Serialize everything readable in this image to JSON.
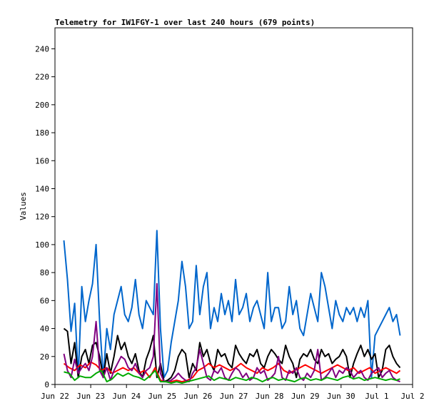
{
  "chart_data": {
    "type": "line",
    "title": "Telemetry for IW1FGY-1 over last 240 hours (679 points)",
    "xlabel": "",
    "ylabel": "Values",
    "x_unit": "days",
    "xlim": [
      0,
      10
    ],
    "ylim": [
      0,
      255
    ],
    "y_ticks": [
      0,
      20,
      40,
      60,
      80,
      100,
      120,
      140,
      160,
      180,
      200,
      220,
      240
    ],
    "x_ticks": [
      {
        "value": 0,
        "label": "Jun 22"
      },
      {
        "value": 1,
        "label": "Jun 23"
      },
      {
        "value": 2,
        "label": "Jun 24"
      },
      {
        "value": 3,
        "label": "Jun 25"
      },
      {
        "value": 4,
        "label": "Jun 26"
      },
      {
        "value": 5,
        "label": "Jun 27"
      },
      {
        "value": 6,
        "label": "Jun 28"
      },
      {
        "value": 7,
        "label": "Jun 29"
      },
      {
        "value": 8,
        "label": "Jun 30"
      },
      {
        "value": 9,
        "label": "Jul 1"
      },
      {
        "value": 10,
        "label": "Jul 2"
      }
    ],
    "grid": false,
    "legend": "none",
    "series": [
      {
        "color": "#0066cc",
        "x": [
          0.25,
          0.35,
          0.45,
          0.55,
          0.65,
          0.75,
          0.85,
          0.95,
          1.05,
          1.15,
          1.25,
          1.35,
          1.45,
          1.55,
          1.65,
          1.75,
          1.85,
          1.95,
          2.05,
          2.15,
          2.25,
          2.35,
          2.45,
          2.55,
          2.65,
          2.75,
          2.85,
          2.95,
          3.05,
          3.15,
          3.25,
          3.35,
          3.45,
          3.55,
          3.65,
          3.75,
          3.85,
          3.95,
          4.05,
          4.15,
          4.25,
          4.35,
          4.45,
          4.55,
          4.65,
          4.75,
          4.85,
          4.95,
          5.05,
          5.15,
          5.25,
          5.35,
          5.45,
          5.55,
          5.65,
          5.75,
          5.85,
          5.95,
          6.05,
          6.15,
          6.25,
          6.35,
          6.45,
          6.55,
          6.65,
          6.75,
          6.85,
          6.95,
          7.05,
          7.15,
          7.25,
          7.35,
          7.45,
          7.55,
          7.65,
          7.75,
          7.85,
          7.95,
          8.05,
          8.15,
          8.25,
          8.35,
          8.45,
          8.55,
          8.65,
          8.75,
          8.85,
          8.95,
          9.05,
          9.15,
          9.25,
          9.35,
          9.45,
          9.55,
          9.65
        ],
        "y": [
          103,
          75,
          38,
          58,
          5,
          70,
          45,
          60,
          72,
          100,
          45,
          5,
          40,
          25,
          50,
          60,
          70,
          50,
          45,
          55,
          75,
          50,
          40,
          60,
          55,
          50,
          110,
          40,
          5,
          10,
          30,
          45,
          60,
          88,
          70,
          40,
          45,
          85,
          50,
          70,
          80,
          40,
          55,
          45,
          65,
          50,
          60,
          45,
          75,
          50,
          55,
          65,
          45,
          55,
          60,
          50,
          40,
          80,
          45,
          55,
          55,
          40,
          45,
          70,
          50,
          60,
          40,
          35,
          50,
          65,
          55,
          45,
          80,
          70,
          55,
          40,
          60,
          50,
          45,
          55,
          50,
          55,
          45,
          55,
          48,
          60,
          5,
          35,
          40,
          45,
          50,
          55,
          45,
          50,
          35
        ]
      },
      {
        "color": "#000000",
        "x": [
          0.25,
          0.35,
          0.45,
          0.55,
          0.65,
          0.75,
          0.85,
          0.95,
          1.05,
          1.15,
          1.25,
          1.35,
          1.45,
          1.55,
          1.65,
          1.75,
          1.85,
          1.95,
          2.05,
          2.15,
          2.25,
          2.35,
          2.45,
          2.55,
          2.65,
          2.75,
          2.85,
          2.95,
          3.05,
          3.15,
          3.25,
          3.35,
          3.45,
          3.55,
          3.65,
          3.75,
          3.85,
          3.95,
          4.05,
          4.15,
          4.25,
          4.35,
          4.45,
          4.55,
          4.65,
          4.75,
          4.85,
          4.95,
          5.05,
          5.15,
          5.25,
          5.35,
          5.45,
          5.55,
          5.65,
          5.75,
          5.85,
          5.95,
          6.05,
          6.15,
          6.25,
          6.35,
          6.45,
          6.55,
          6.65,
          6.75,
          6.85,
          6.95,
          7.05,
          7.15,
          7.25,
          7.35,
          7.45,
          7.55,
          7.65,
          7.75,
          7.85,
          7.95,
          8.05,
          8.15,
          8.25,
          8.35,
          8.45,
          8.55,
          8.65,
          8.75,
          8.85,
          8.95,
          9.05,
          9.15,
          9.25,
          9.35,
          9.45,
          9.55,
          9.65
        ],
        "y": [
          40,
          38,
          15,
          30,
          5,
          20,
          25,
          15,
          28,
          30,
          20,
          5,
          22,
          8,
          20,
          35,
          25,
          30,
          20,
          15,
          22,
          10,
          5,
          18,
          25,
          35,
          5,
          15,
          2,
          3,
          5,
          10,
          20,
          25,
          22,
          5,
          15,
          10,
          30,
          20,
          25,
          15,
          10,
          25,
          20,
          22,
          15,
          12,
          28,
          22,
          18,
          15,
          22,
          20,
          25,
          15,
          12,
          20,
          25,
          22,
          18,
          15,
          28,
          20,
          15,
          5,
          18,
          22,
          20,
          25,
          18,
          15,
          25,
          20,
          22,
          15,
          18,
          20,
          25,
          20,
          5,
          15,
          22,
          28,
          20,
          25,
          18,
          22,
          5,
          10,
          25,
          28,
          20,
          15,
          12
        ]
      },
      {
        "color": "#ff0000",
        "x": [
          0.25,
          0.4,
          0.55,
          0.7,
          0.85,
          1.0,
          1.15,
          1.3,
          1.45,
          1.6,
          1.75,
          1.9,
          2.05,
          2.2,
          2.35,
          2.5,
          2.65,
          2.8,
          2.95,
          3.1,
          3.25,
          3.4,
          3.55,
          3.7,
          3.85,
          4.0,
          4.15,
          4.3,
          4.45,
          4.6,
          4.75,
          4.9,
          5.05,
          5.2,
          5.35,
          5.5,
          5.65,
          5.8,
          5.95,
          6.1,
          6.25,
          6.4,
          6.55,
          6.7,
          6.85,
          7.0,
          7.15,
          7.3,
          7.45,
          7.6,
          7.75,
          7.9,
          8.05,
          8.2,
          8.35,
          8.5,
          8.65,
          8.8,
          8.95,
          9.1,
          9.25,
          9.4,
          9.55,
          9.65
        ],
        "y": [
          15,
          12,
          10,
          14,
          12,
          16,
          14,
          10,
          12,
          8,
          10,
          12,
          10,
          12,
          8,
          10,
          5,
          12,
          3,
          2,
          2,
          3,
          2,
          3,
          5,
          10,
          12,
          15,
          12,
          14,
          12,
          10,
          12,
          15,
          12,
          10,
          8,
          12,
          10,
          12,
          15,
          10,
          8,
          10,
          12,
          14,
          12,
          10,
          8,
          10,
          12,
          14,
          12,
          10,
          12,
          8,
          10,
          12,
          8,
          10,
          12,
          10,
          8,
          10
        ]
      },
      {
        "color": "#800080",
        "x": [
          0.25,
          0.35,
          0.45,
          0.55,
          0.65,
          0.75,
          0.85,
          0.95,
          1.05,
          1.15,
          1.25,
          1.35,
          1.45,
          1.55,
          1.65,
          1.75,
          1.85,
          1.95,
          2.05,
          2.15,
          2.25,
          2.35,
          2.45,
          2.55,
          2.65,
          2.75,
          2.85,
          2.95,
          3.05,
          3.15,
          3.25,
          3.35,
          3.45,
          3.55,
          3.65,
          3.75,
          3.85,
          3.95,
          4.05,
          4.15,
          4.25,
          4.35,
          4.45,
          4.55,
          4.65,
          4.75,
          4.85,
          4.95,
          5.05,
          5.15,
          5.25,
          5.35,
          5.45,
          5.55,
          5.65,
          5.75,
          5.85,
          5.95,
          6.05,
          6.15,
          6.25,
          6.35,
          6.45,
          6.55,
          6.65,
          6.75,
          6.85,
          6.95,
          7.05,
          7.15,
          7.25,
          7.35,
          7.45,
          7.55,
          7.65,
          7.75,
          7.85,
          7.95,
          8.05,
          8.15,
          8.25,
          8.35,
          8.45,
          8.55,
          8.65,
          8.75,
          8.85,
          8.95,
          9.05,
          9.15,
          9.25,
          9.35,
          9.45,
          9.55,
          9.65
        ],
        "y": [
          22,
          10,
          5,
          18,
          8,
          12,
          15,
          10,
          20,
          45,
          10,
          5,
          12,
          3,
          10,
          15,
          20,
          18,
          12,
          10,
          15,
          8,
          5,
          10,
          12,
          20,
          72,
          8,
          2,
          2,
          3,
          5,
          8,
          5,
          3,
          2,
          8,
          12,
          25,
          15,
          5,
          3,
          10,
          8,
          12,
          5,
          3,
          8,
          12,
          10,
          5,
          8,
          3,
          5,
          12,
          8,
          10,
          3,
          5,
          8,
          20,
          5,
          3,
          10,
          8,
          12,
          5,
          3,
          8,
          5,
          10,
          25,
          3,
          5,
          8,
          12,
          5,
          10,
          8,
          12,
          10,
          5,
          8,
          10,
          5,
          3,
          8,
          10,
          12,
          5,
          8,
          10,
          5,
          3,
          2
        ]
      },
      {
        "color": "#00aa00",
        "x": [
          0.25,
          0.4,
          0.55,
          0.7,
          0.85,
          1.0,
          1.15,
          1.3,
          1.45,
          1.6,
          1.75,
          1.9,
          2.05,
          2.2,
          2.35,
          2.5,
          2.65,
          2.8,
          2.95,
          3.1,
          3.25,
          3.4,
          3.55,
          3.7,
          3.85,
          4.0,
          4.15,
          4.3,
          4.45,
          4.6,
          4.75,
          4.9,
          5.05,
          5.2,
          5.35,
          5.5,
          5.65,
          5.8,
          5.95,
          6.1,
          6.25,
          6.4,
          6.55,
          6.7,
          6.85,
          7.0,
          7.15,
          7.3,
          7.45,
          7.6,
          7.75,
          7.9,
          8.05,
          8.2,
          8.35,
          8.5,
          8.65,
          8.8,
          8.95,
          9.1,
          9.25,
          9.4,
          9.55,
          9.65
        ],
        "y": [
          9,
          8,
          3,
          6,
          5,
          5,
          8,
          10,
          2,
          4,
          8,
          6,
          8,
          6,
          5,
          3,
          6,
          10,
          2,
          2,
          1,
          2,
          1,
          2,
          3,
          4,
          5,
          6,
          3,
          5,
          4,
          3,
          5,
          4,
          3,
          5,
          4,
          2,
          4,
          5,
          3,
          4,
          3,
          2,
          4,
          5,
          3,
          4,
          3,
          5,
          4,
          3,
          5,
          6,
          4,
          5,
          3,
          4,
          5,
          4,
          3,
          4,
          3,
          4
        ]
      }
    ]
  }
}
